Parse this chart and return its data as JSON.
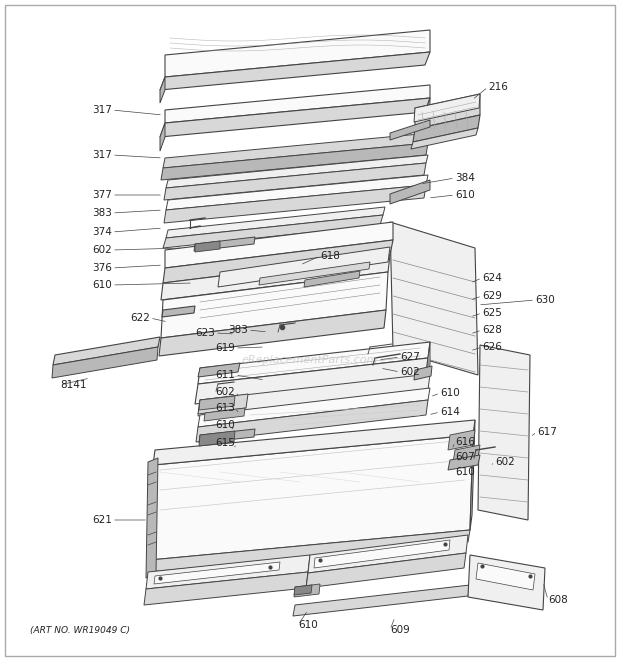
{
  "background_color": "#ffffff",
  "line_color": "#444444",
  "text_color": "#222222",
  "fill_light": "#f0f0f0",
  "fill_mid": "#d8d8d8",
  "fill_dark": "#b8b8b8",
  "fill_white": "#fafafa",
  "watermark": "eReplacementParts.com",
  "art_no": "(ART NO. WR19049 C)",
  "figure_width": 6.2,
  "figure_height": 6.61,
  "dpi": 100
}
